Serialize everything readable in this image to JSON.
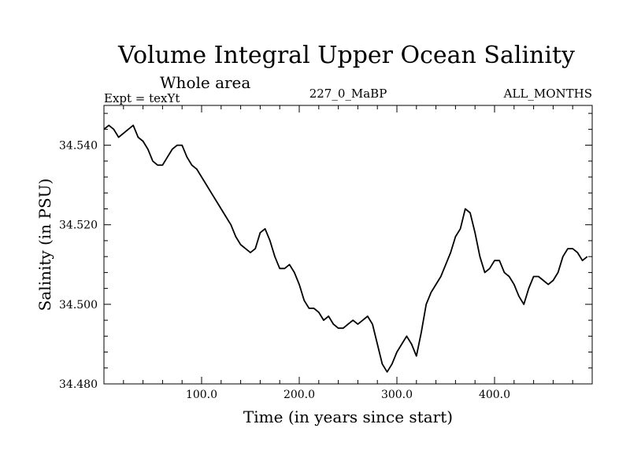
{
  "chart_data": {
    "type": "line",
    "title": "Volume Integral Upper Ocean Salinity",
    "subtitle": "Whole area",
    "expt_label": "Expt = texYt",
    "run_label": "227_0_MaBP",
    "months_label": "ALL_MONTHS",
    "xlabel": "Time (in years since start)",
    "ylabel": "Salinity (in PSU)",
    "xlim": [
      0,
      500
    ],
    "ylim": [
      34.48,
      34.55
    ],
    "x_ticks": [
      100,
      200,
      300,
      400
    ],
    "x_tick_labels": [
      "100.0",
      "200.0",
      "300.0",
      "400.0"
    ],
    "y_ticks": [
      34.48,
      34.5,
      34.52,
      34.54
    ],
    "y_tick_labels": [
      "34.480",
      "34.500",
      "34.520",
      "34.540"
    ],
    "grid": false,
    "series": [
      {
        "color": "#000000",
        "x": [
          0,
          5,
          10,
          15,
          20,
          25,
          30,
          35,
          40,
          45,
          50,
          55,
          60,
          65,
          70,
          75,
          80,
          85,
          90,
          95,
          100,
          105,
          110,
          115,
          120,
          125,
          130,
          135,
          140,
          145,
          150,
          155,
          160,
          165,
          170,
          175,
          180,
          185,
          190,
          195,
          200,
          205,
          210,
          215,
          220,
          225,
          230,
          235,
          240,
          245,
          250,
          255,
          260,
          265,
          270,
          275,
          280,
          285,
          290,
          295,
          300,
          305,
          310,
          315,
          320,
          325,
          330,
          335,
          340,
          345,
          350,
          355,
          360,
          365,
          370,
          375,
          380,
          385,
          390,
          395,
          400,
          405,
          410,
          415,
          420,
          425,
          430,
          435,
          440,
          445,
          450,
          455,
          460,
          465,
          470,
          475,
          480,
          485,
          490,
          495
        ],
        "y": [
          34.544,
          34.545,
          34.544,
          34.542,
          34.543,
          34.544,
          34.545,
          34.542,
          34.541,
          34.539,
          34.536,
          34.535,
          34.535,
          34.537,
          34.539,
          34.54,
          34.54,
          34.537,
          34.535,
          34.534,
          34.532,
          34.53,
          34.528,
          34.526,
          34.524,
          34.522,
          34.52,
          34.517,
          34.515,
          34.514,
          34.513,
          34.514,
          34.518,
          34.519,
          34.516,
          34.512,
          34.509,
          34.509,
          34.51,
          34.508,
          34.505,
          34.501,
          34.499,
          34.499,
          34.498,
          34.496,
          34.497,
          34.495,
          34.494,
          34.494,
          34.495,
          34.496,
          34.495,
          34.496,
          34.497,
          34.495,
          34.49,
          34.485,
          34.483,
          34.485,
          34.488,
          34.49,
          34.492,
          34.49,
          34.487,
          34.493,
          34.5,
          34.503,
          34.505,
          34.507,
          34.51,
          34.513,
          34.517,
          34.519,
          34.524,
          34.523,
          34.518,
          34.512,
          34.508,
          34.509,
          34.511,
          34.511,
          34.508,
          34.507,
          34.505,
          34.502,
          34.5,
          34.504,
          34.507,
          34.507,
          34.506,
          34.505,
          34.506,
          34.508,
          34.512,
          34.514,
          34.514,
          34.513,
          34.511,
          34.512
        ]
      }
    ]
  }
}
